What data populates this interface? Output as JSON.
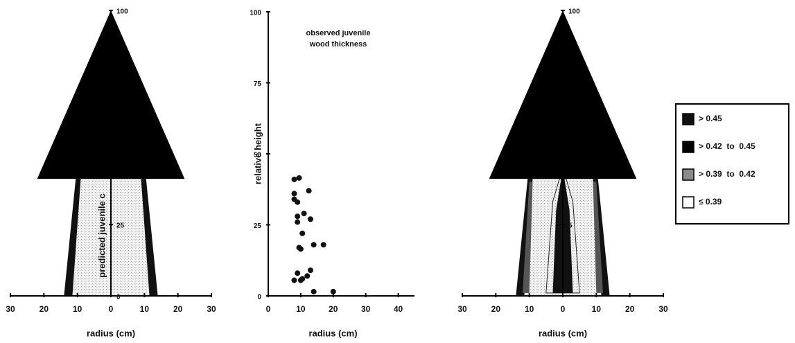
{
  "chart_data": [
    {
      "type": "tree",
      "xlabel": "radius (cm)",
      "ylabel": "predicted juvenile c",
      "xlim": [
        -30,
        30
      ],
      "xticks": [
        {
          "value": -30,
          "label": "30"
        },
        {
          "value": -20,
          "label": "20"
        },
        {
          "value": -10,
          "label": "10"
        },
        0,
        10,
        20,
        30
      ],
      "ylim": [
        0,
        100
      ],
      "yticks": [
        0,
        25,
        100
      ],
      "grid": false
    },
    {
      "type": "scatter",
      "xlabel": "radius (cm)",
      "ylabel": "relative height",
      "annotation": [
        "observed juvenile",
        "wood thickness"
      ],
      "x": [
        8,
        9.5,
        8,
        8,
        9,
        12.5,
        9,
        9,
        11,
        10.5,
        13,
        9.5,
        10,
        14,
        17,
        9,
        13,
        12,
        10.5,
        10,
        8,
        14,
        20
      ],
      "values": [
        41,
        41.5,
        36,
        34,
        33,
        37,
        28,
        26,
        29,
        22,
        27,
        17,
        16.5,
        18,
        18,
        8,
        9,
        7,
        6,
        5.5,
        5.5,
        1.5,
        1.5
      ],
      "color": "#111",
      "xlim": [
        0,
        45
      ],
      "xticks": [
        0,
        10,
        20,
        30,
        40
      ],
      "ylim": [
        0,
        100
      ],
      "yticks": [
        0,
        25,
        50,
        75,
        100
      ],
      "grid": false
    },
    {
      "type": "tree",
      "xlabel": "radius (cm)",
      "xlim": [
        -30,
        30
      ],
      "xticks": [
        {
          "value": -30,
          "label": "30"
        },
        {
          "value": -20,
          "label": "20"
        },
        {
          "value": -10,
          "label": "10"
        },
        0,
        10,
        20,
        30
      ],
      "ylim": [
        0,
        100
      ],
      "yticks": [
        {
          "value": 25,
          "label": "5"
        },
        100
      ],
      "grid": false,
      "legend": "right",
      "legend_entries": [
        {
          "name": "> 0.45",
          "color": "#111111"
        },
        {
          "name": "> 0.42  to  0.45",
          "color": "#000000"
        },
        {
          "name": "> 0.39  to  0.42",
          "color": "#8a8a8a"
        },
        {
          "name": "≤ 0.39",
          "color": "#ffffff"
        }
      ]
    }
  ]
}
